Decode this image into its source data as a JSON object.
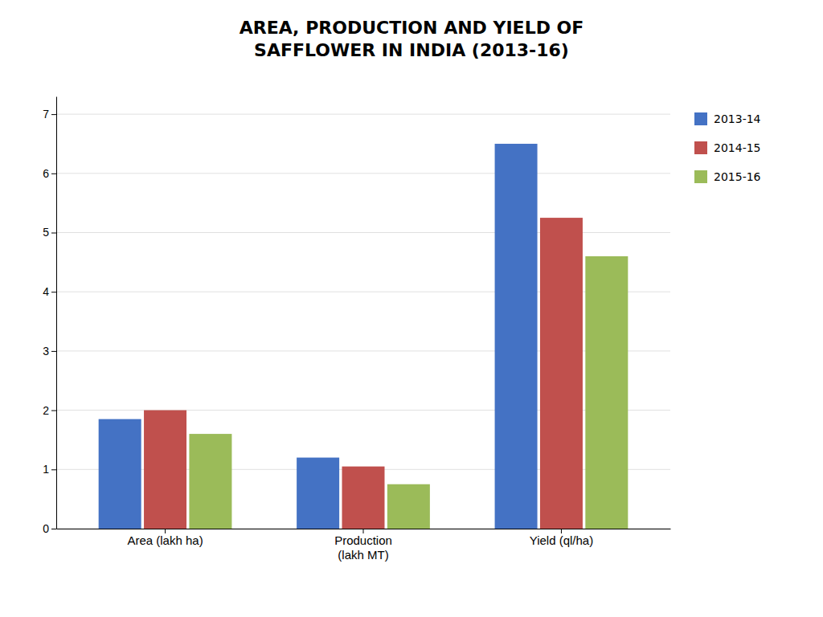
{
  "chart_data": {
    "type": "bar",
    "title": "AREA, PRODUCTION AND YIELD OF\nSAFFLOWER IN INDIA (2013-16)",
    "categories": [
      "Area (lakh ha)",
      "Production\n(lakh MT)",
      "Yield (ql/ha)"
    ],
    "series": [
      {
        "name": "2013-14",
        "color": "#4472C4",
        "values": [
          1.85,
          1.2,
          6.5
        ]
      },
      {
        "name": "2014-15",
        "color": "#C0504D",
        "values": [
          2.0,
          1.05,
          5.25
        ]
      },
      {
        "name": "2015-16",
        "color": "#9BBB59",
        "values": [
          1.6,
          0.75,
          4.6
        ]
      }
    ],
    "ylim": [
      0,
      7.3
    ],
    "yticks": [
      0,
      1,
      2,
      3,
      4,
      5,
      6,
      7
    ],
    "grid": true,
    "legend": "upper right"
  }
}
